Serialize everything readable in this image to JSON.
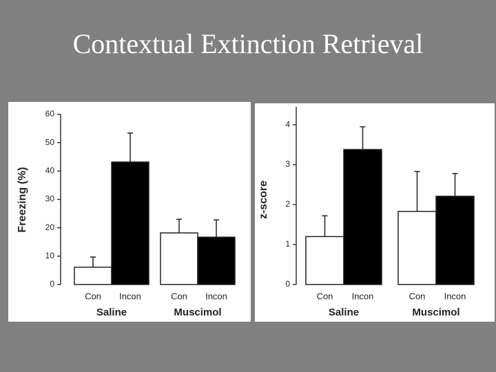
{
  "title": "Contextual Extinction Retrieval",
  "chart_data": [
    {
      "type": "bar",
      "y_label": "Freezing (%)",
      "categories": [
        "Con",
        "Incon",
        "Con",
        "Incon"
      ],
      "groups": [
        "Saline",
        "Muscimol"
      ],
      "values": [
        6.1,
        43.2,
        18.2,
        16.7
      ],
      "errors": [
        3.6,
        10.2,
        4.8,
        6.1
      ],
      "colors": [
        "#ffffff",
        "#000000",
        "#ffffff",
        "#000000"
      ],
      "ylim": [
        0,
        60
      ],
      "yticks": [
        0,
        10,
        20,
        30,
        40,
        50,
        60
      ]
    },
    {
      "type": "bar",
      "y_label": "z-score",
      "categories": [
        "Con",
        "Incon",
        "Con",
        "Incon"
      ],
      "groups": [
        "Saline",
        "Muscimol"
      ],
      "values": [
        1.2,
        3.38,
        1.83,
        2.21
      ],
      "errors": [
        0.52,
        0.57,
        1.0,
        0.57
      ],
      "colors": [
        "#ffffff",
        "#000000",
        "#ffffff",
        "#000000"
      ],
      "ylim": [
        0,
        4.45
      ],
      "yticks": [
        0,
        1,
        2,
        3,
        4
      ]
    }
  ]
}
